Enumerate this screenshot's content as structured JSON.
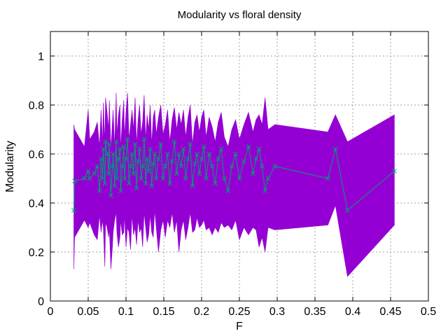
{
  "chart_data": {
    "type": "line",
    "title": "Modularity vs floral density",
    "xlabel": "F",
    "ylabel": "Modularity",
    "xlim": [
      0,
      0.5
    ],
    "ylim": [
      0,
      1.1
    ],
    "x_ticks": [
      0,
      0.05,
      0.1,
      0.15,
      0.2,
      0.25,
      0.3,
      0.35,
      0.4,
      0.45,
      0.5
    ],
    "x_tick_labels": [
      "0",
      "0.05",
      "0.1",
      "0.15",
      "0.2",
      "0.25",
      "0.3",
      "0.35",
      "0.4",
      "0.45",
      "0.5"
    ],
    "y_ticks": [
      0,
      0.2,
      0.4,
      0.6,
      0.8,
      1
    ],
    "y_tick_labels": [
      "0",
      "0.2",
      "0.4",
      "0.6",
      "0.8",
      "1"
    ],
    "grid": true,
    "colors": {
      "band": "#9400d3",
      "line": "#009e73"
    },
    "series": [
      {
        "x": [
          0.031,
          0.032,
          0.045,
          0.05,
          0.052,
          0.058,
          0.062,
          0.065,
          0.067,
          0.069,
          0.07,
          0.072,
          0.073,
          0.075,
          0.077,
          0.078,
          0.08,
          0.082,
          0.083,
          0.085,
          0.087,
          0.088,
          0.09,
          0.092,
          0.093,
          0.095,
          0.097,
          0.098,
          0.1,
          0.102,
          0.104,
          0.106,
          0.108,
          0.11,
          0.112,
          0.114,
          0.116,
          0.118,
          0.12,
          0.122,
          0.124,
          0.126,
          0.128,
          0.13,
          0.132,
          0.134,
          0.136,
          0.138,
          0.14,
          0.143,
          0.146,
          0.149,
          0.152,
          0.155,
          0.158,
          0.161,
          0.164,
          0.167,
          0.17,
          0.173,
          0.176,
          0.179,
          0.182,
          0.185,
          0.188,
          0.191,
          0.194,
          0.197,
          0.2,
          0.203,
          0.206,
          0.21,
          0.214,
          0.218,
          0.222,
          0.226,
          0.23,
          0.235,
          0.24,
          0.245,
          0.25,
          0.256,
          0.262,
          0.268,
          0.272,
          0.276,
          0.28,
          0.284,
          0.288,
          0.297,
          0.367,
          0.377,
          0.393,
          0.455
        ],
        "y": [
          0.37,
          0.49,
          0.5,
          0.53,
          0.5,
          0.52,
          0.55,
          0.45,
          0.58,
          0.5,
          0.62,
          0.48,
          0.65,
          0.6,
          0.52,
          0.64,
          0.43,
          0.55,
          0.6,
          0.47,
          0.65,
          0.5,
          0.58,
          0.62,
          0.45,
          0.55,
          0.63,
          0.5,
          0.58,
          0.66,
          0.48,
          0.55,
          0.6,
          0.52,
          0.64,
          0.46,
          0.57,
          0.62,
          0.5,
          0.55,
          0.66,
          0.48,
          0.58,
          0.53,
          0.62,
          0.47,
          0.56,
          0.6,
          0.5,
          0.58,
          0.64,
          0.5,
          0.55,
          0.6,
          0.48,
          0.57,
          0.65,
          0.52,
          0.6,
          0.55,
          0.62,
          0.5,
          0.58,
          0.64,
          0.47,
          0.56,
          0.6,
          0.52,
          0.58,
          0.63,
          0.5,
          0.6,
          0.55,
          0.48,
          0.58,
          0.62,
          0.5,
          0.45,
          0.55,
          0.6,
          0.5,
          0.57,
          0.63,
          0.52,
          0.58,
          0.62,
          0.55,
          0.45,
          0.5,
          0.55,
          0.5,
          0.62,
          0.37,
          0.53
        ],
        "lower": [
          0.13,
          0.26,
          0.33,
          0.3,
          0.32,
          0.27,
          0.25,
          0.35,
          0.28,
          0.33,
          0.3,
          0.14,
          0.32,
          0.3,
          0.26,
          0.3,
          0.13,
          0.22,
          0.28,
          0.33,
          0.36,
          0.28,
          0.22,
          0.26,
          0.33,
          0.27,
          0.28,
          0.35,
          0.22,
          0.3,
          0.28,
          0.21,
          0.35,
          0.27,
          0.3,
          0.23,
          0.33,
          0.28,
          0.3,
          0.22,
          0.36,
          0.3,
          0.24,
          0.27,
          0.35,
          0.28,
          0.26,
          0.37,
          0.3,
          0.2,
          0.29,
          0.33,
          0.26,
          0.33,
          0.3,
          0.36,
          0.28,
          0.33,
          0.2,
          0.29,
          0.33,
          0.25,
          0.3,
          0.36,
          0.28,
          0.29,
          0.34,
          0.3,
          0.31,
          0.33,
          0.29,
          0.3,
          0.27,
          0.3,
          0.28,
          0.32,
          0.3,
          0.31,
          0.29,
          0.33,
          0.25,
          0.3,
          0.27,
          0.3,
          0.29,
          0.22,
          0.26,
          0.2,
          0.3,
          0.29,
          0.31,
          0.39,
          0.1,
          0.31
        ],
        "upper": [
          0.72,
          0.7,
          0.63,
          0.78,
          0.66,
          0.69,
          0.73,
          0.63,
          0.78,
          0.64,
          0.81,
          0.65,
          0.83,
          0.77,
          0.7,
          0.82,
          0.62,
          0.73,
          0.78,
          0.63,
          0.85,
          0.68,
          0.76,
          0.8,
          0.62,
          0.74,
          0.82,
          0.67,
          0.77,
          0.85,
          0.66,
          0.72,
          0.78,
          0.7,
          0.83,
          0.64,
          0.74,
          0.8,
          0.68,
          0.73,
          0.84,
          0.66,
          0.76,
          0.7,
          0.8,
          0.64,
          0.75,
          0.78,
          0.68,
          0.75,
          0.8,
          0.68,
          0.72,
          0.78,
          0.65,
          0.74,
          0.79,
          0.7,
          0.77,
          0.72,
          0.78,
          0.67,
          0.75,
          0.8,
          0.64,
          0.73,
          0.76,
          0.69,
          0.75,
          0.78,
          0.67,
          0.75,
          0.71,
          0.65,
          0.73,
          0.77,
          0.67,
          0.63,
          0.7,
          0.74,
          0.66,
          0.72,
          0.77,
          0.69,
          0.74,
          0.76,
          0.72,
          0.83,
          0.7,
          0.72,
          0.69,
          0.76,
          0.65,
          0.76
        ]
      }
    ]
  }
}
